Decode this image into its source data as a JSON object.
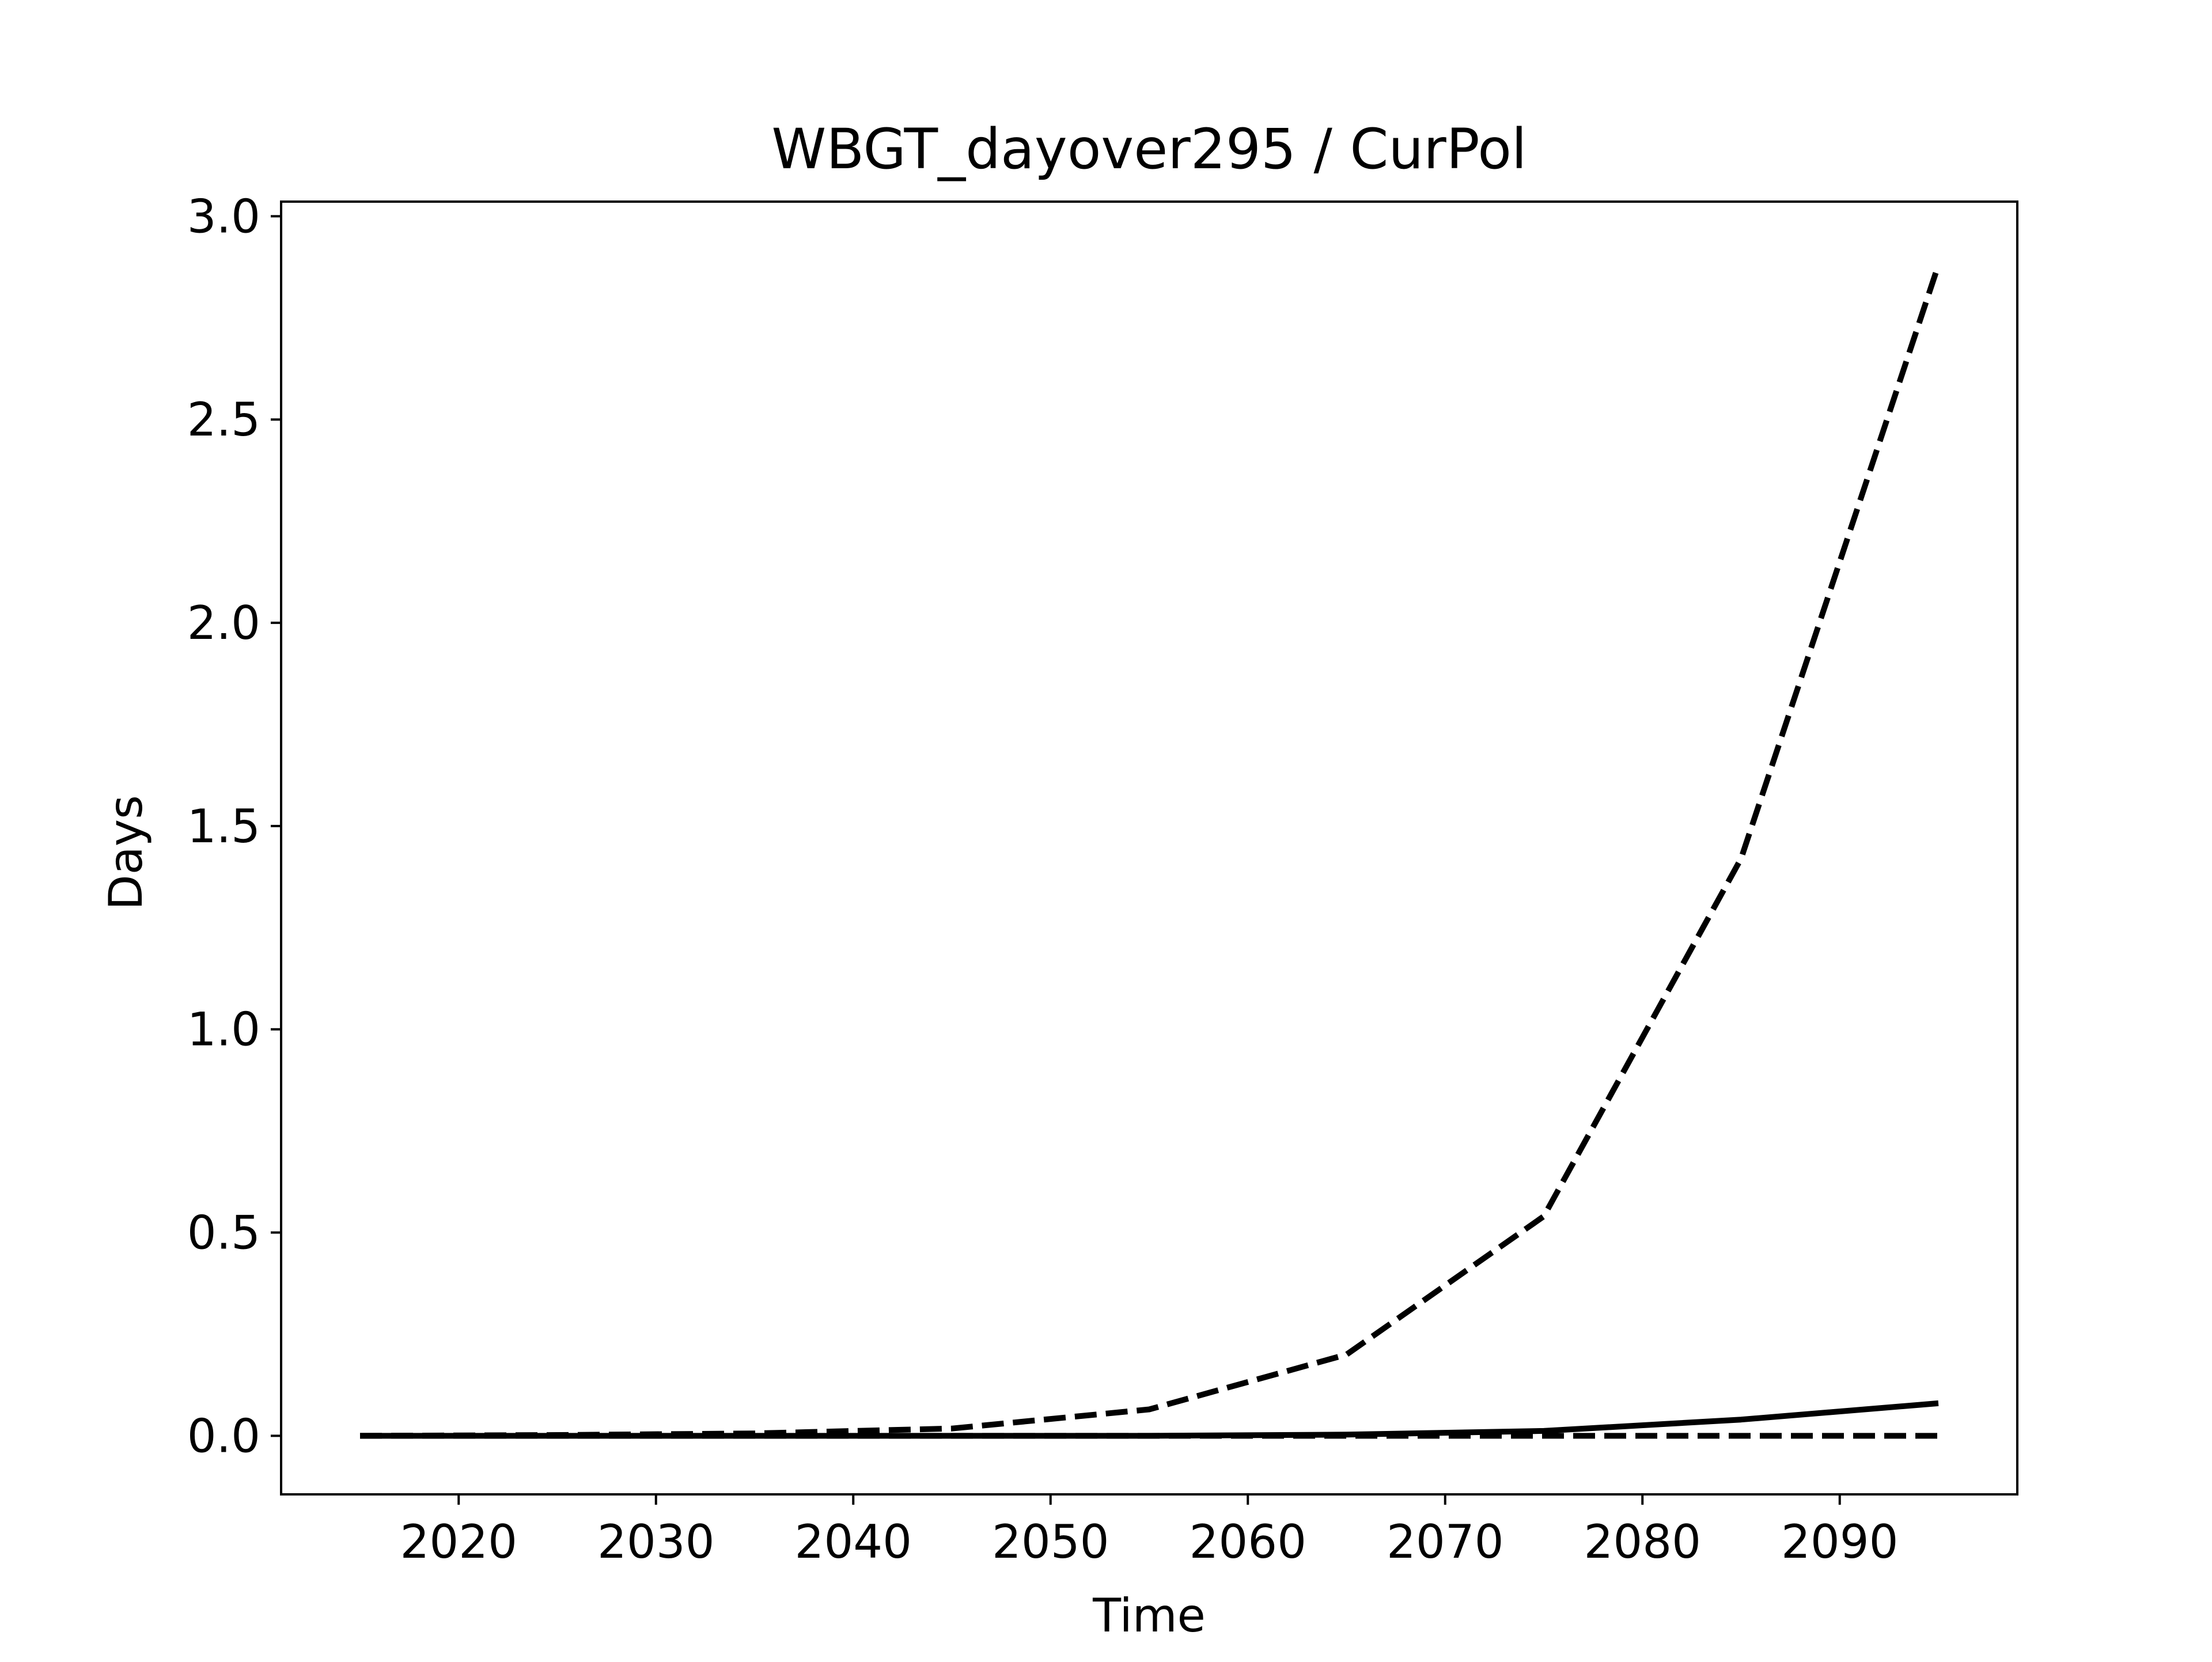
{
  "chart_data": {
    "type": "line",
    "title": "WBGT_dayover295 / CurPol",
    "xlabel": "Time",
    "ylabel": "Days",
    "xlim": [
      2011,
      2099
    ],
    "ylim": [
      -0.144,
      3.036
    ],
    "xticks": [
      2020,
      2030,
      2040,
      2050,
      2060,
      2070,
      2080,
      2090
    ],
    "xtick_labels": [
      "2020",
      "2030",
      "2040",
      "2050",
      "2060",
      "2070",
      "2080",
      "2090"
    ],
    "yticks": [
      0.0,
      0.5,
      1.0,
      1.5,
      2.0,
      2.5,
      3.0
    ],
    "ytick_labels": [
      "0.0",
      "0.5",
      "1.0",
      "1.5",
      "2.0",
      "2.5",
      "3.0"
    ],
    "grid": false,
    "legend": "none",
    "series_color": "#000000",
    "x": [
      2015,
      2025,
      2035,
      2045,
      2055,
      2065,
      2075,
      2085,
      2095
    ],
    "series": [
      {
        "style": "dashed",
        "values": [
          0.0,
          0.002,
          0.006,
          0.018,
          0.065,
          0.2,
          0.54,
          1.42,
          2.88
        ]
      },
      {
        "style": "solid",
        "values": [
          0.0,
          0.0,
          0.0,
          0.0,
          0.0,
          0.003,
          0.012,
          0.04,
          0.08
        ]
      },
      {
        "style": "dashed",
        "values": [
          0.0,
          0.0,
          0.0,
          0.0,
          0.0,
          0.0,
          0.0,
          0.0,
          0.0
        ]
      }
    ]
  }
}
